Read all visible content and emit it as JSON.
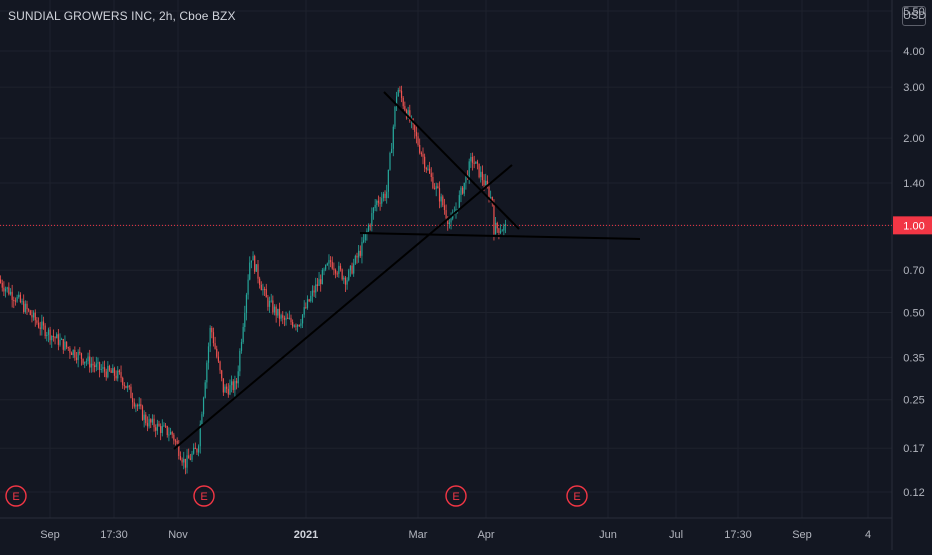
{
  "symbol": {
    "title": "SUNDIAL GROWERS INC, 2h, Cboe BZX",
    "currency": "USD"
  },
  "colors": {
    "background": "#131722",
    "grid": "#1e222d",
    "up": "#26a69a",
    "down": "#ef5350",
    "axis_text": "#b2b5be",
    "drawing": "#000000",
    "price_line": "#f23645",
    "earnings": "#f23645"
  },
  "chart_data": {
    "type": "candlestick",
    "title": "SUNDIAL GROWERS INC, 2h, Cboe BZX",
    "scale": "log",
    "grid": true,
    "y_ticks": [
      "5.50",
      "4.00",
      "3.00",
      "2.00",
      "1.40",
      "1.00",
      "0.70",
      "0.50",
      "0.35",
      "0.25",
      "0.17",
      "0.12"
    ],
    "y_tick_values": [
      5.5,
      4.0,
      3.0,
      2.0,
      1.4,
      1.0,
      0.7,
      0.5,
      0.35,
      0.25,
      0.17,
      0.12
    ],
    "x_ticks": [
      "Sep",
      "17:30",
      "Nov",
      "2021",
      "Mar",
      "Apr",
      "Jun",
      "Jul",
      "17:30",
      "Sep",
      "4"
    ],
    "x_ticks_bold": [
      "2021"
    ],
    "current_price": {
      "value": 1.0,
      "label": "1.00"
    },
    "earnings_markers": [
      {
        "label": "E",
        "date": "Aug 2020"
      },
      {
        "label": "E",
        "date": "Nov 2020"
      },
      {
        "label": "E",
        "date": "Mar 2021"
      },
      {
        "label": "E",
        "date": "May 2021"
      }
    ],
    "price_path": [
      {
        "date": "Aug 2020",
        "close": 0.65
      },
      {
        "date": "Aug 2020",
        "close": 0.55
      },
      {
        "date": "Aug 2020",
        "close": 0.45
      },
      {
        "date": "Sep 2020",
        "close": 0.38
      },
      {
        "date": "Sep 2020",
        "close": 0.32
      },
      {
        "date": "Oct 2020",
        "close": 0.3
      },
      {
        "date": "Oct 2020",
        "close": 0.25
      },
      {
        "date": "Oct 2020",
        "close": 0.21
      },
      {
        "date": "Oct 2020",
        "close": 0.2
      },
      {
        "date": "Oct 2020",
        "close": 0.19
      },
      {
        "date": "Nov 2020",
        "close": 0.15
      },
      {
        "date": "Nov 2020",
        "close": 0.17
      },
      {
        "date": "Nov 2020",
        "close": 0.45
      },
      {
        "date": "Nov 2020",
        "close": 0.27
      },
      {
        "date": "Nov 2020",
        "close": 0.28
      },
      {
        "date": "Dec 2020",
        "close": 0.8
      },
      {
        "date": "Dec 2020",
        "close": 0.55
      },
      {
        "date": "Dec 2020",
        "close": 0.47
      },
      {
        "date": "Dec 2020",
        "close": 0.46
      },
      {
        "date": "Jan 2021",
        "close": 0.6
      },
      {
        "date": "Jan 2021",
        "close": 0.75
      },
      {
        "date": "Jan 2021",
        "close": 0.65
      },
      {
        "date": "Jan 2021",
        "close": 0.85
      },
      {
        "date": "Feb 2021",
        "close": 1.2
      },
      {
        "date": "Feb 2021",
        "close": 1.3
      },
      {
        "date": "Feb 2021",
        "close": 3.0
      },
      {
        "date": "Feb 2021",
        "close": 2.4
      },
      {
        "date": "Feb 2021",
        "close": 1.9
      },
      {
        "date": "Feb 2021",
        "close": 1.5
      },
      {
        "date": "Mar 2021",
        "close": 1.25
      },
      {
        "date": "Mar 2021",
        "close": 1.0
      },
      {
        "date": "Mar 2021",
        "close": 1.3
      },
      {
        "date": "Mar 2021",
        "close": 1.7
      },
      {
        "date": "Mar 2021",
        "close": 1.45
      },
      {
        "date": "Mar 2021",
        "close": 1.2
      },
      {
        "date": "Apr 2021",
        "close": 1.1
      },
      {
        "date": "Apr 2021",
        "close": 0.98
      }
    ]
  }
}
